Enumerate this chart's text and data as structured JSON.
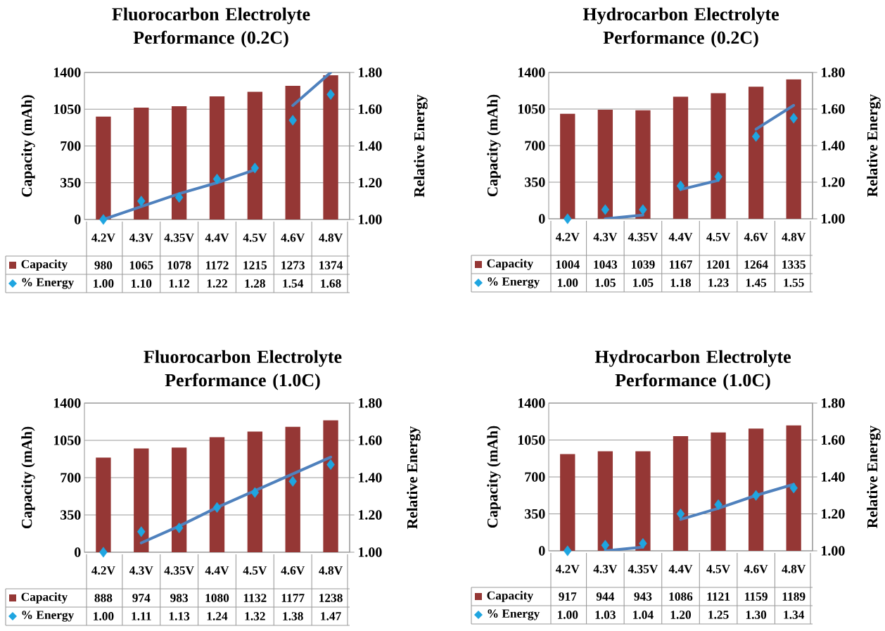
{
  "chart_data": [
    {
      "type": "bar",
      "title": "Fluorocarbon Electrolyte Performance (0.2C)",
      "ylabel": "Capacity (mAh)",
      "y2label": "Relative Energy",
      "categories": [
        "4.2V",
        "4.3V",
        "4.35V",
        "4.4V",
        "4.5V",
        "4.6V",
        "4.8V"
      ],
      "series": [
        {
          "name": "Capacity",
          "type": "bar",
          "color": "#953735",
          "values": [
            980,
            1065,
            1078,
            1172,
            1215,
            1273,
            1374
          ],
          "value_labels": [
            "980",
            "1065",
            "1078",
            "1172",
            "1215",
            "1273",
            "1374"
          ]
        },
        {
          "name": "% Energy",
          "type": "scatter",
          "axis": "y2",
          "marker": "diamond",
          "color": "#1fa5e0",
          "values": [
            1.0,
            1.1,
            1.12,
            1.22,
            1.28,
            1.54,
            1.68
          ],
          "value_labels": [
            "1.00",
            "1.10",
            "1.12",
            "1.22",
            "1.28",
            "1.54",
            "1.68"
          ]
        },
        {
          "type": "line",
          "axis": "y2",
          "marker": "none",
          "line_style": "solid",
          "color": "#4f81bd",
          "values": [
            1.0,
            1.07,
            1.14,
            1.2,
            1.27,
            null,
            null
          ]
        },
        {
          "type": "line",
          "axis": "y2",
          "marker": "none",
          "line_style": "solid",
          "color": "#4f81bd",
          "values": [
            null,
            null,
            null,
            null,
            null,
            1.62,
            1.8
          ]
        }
      ],
      "ylim": [
        0,
        1400
      ],
      "yticks": [
        0,
        350,
        700,
        1050,
        1400
      ],
      "y2lim": [
        1.0,
        1.8
      ],
      "y2ticks": [
        {
          "value": 1.0,
          "label": "1.00"
        },
        {
          "value": 1.2,
          "label": "1.20"
        },
        {
          "value": 1.4,
          "label": "1.40"
        },
        {
          "value": 1.6,
          "label": "1.60"
        },
        {
          "value": 1.8,
          "label": "1.80"
        }
      ],
      "grid": "y",
      "legend": "bottom"
    },
    {
      "type": "bar",
      "title": "Hydrocarbon Electrolyte Performance (0.2C)",
      "ylabel": "Capacity (mAh)",
      "y2label": "Relative Energy",
      "categories": [
        "4.2V",
        "4.3V",
        "4.35V",
        "4.4V",
        "4.5V",
        "4.6V",
        "4.8V"
      ],
      "series": [
        {
          "name": "Capacity",
          "type": "bar",
          "color": "#953735",
          "values": [
            1004,
            1043,
            1039,
            1167,
            1201,
            1264,
            1335
          ],
          "value_labels": [
            "1004",
            "1043",
            "1039",
            "1167",
            "1201",
            "1264",
            "1335"
          ]
        },
        {
          "name": "% Energy",
          "type": "scatter",
          "axis": "y2",
          "marker": "diamond",
          "color": "#1fa5e0",
          "values": [
            1.0,
            1.05,
            1.05,
            1.18,
            1.23,
            1.45,
            1.55
          ],
          "value_labels": [
            "1.00",
            "1.05",
            "1.05",
            "1.18",
            "1.23",
            "1.45",
            "1.55"
          ]
        },
        {
          "type": "line",
          "axis": "y2",
          "marker": "none",
          "line_style": "solid",
          "color": "#4f81bd",
          "values": [
            null,
            1.0,
            1.02,
            null,
            null,
            null,
            null
          ]
        },
        {
          "type": "line",
          "axis": "y2",
          "marker": "none",
          "line_style": "solid",
          "color": "#4f81bd",
          "values": [
            null,
            null,
            null,
            1.16,
            1.21,
            null,
            null
          ]
        },
        {
          "type": "line",
          "axis": "y2",
          "marker": "none",
          "line_style": "solid",
          "color": "#4f81bd",
          "values": [
            null,
            null,
            null,
            null,
            null,
            1.49,
            1.62
          ]
        }
      ],
      "ylim": [
        0,
        1400
      ],
      "yticks": [
        0,
        350,
        700,
        1050,
        1400
      ],
      "y2lim": [
        1.0,
        1.8
      ],
      "y2ticks": [
        {
          "value": 1.0,
          "label": "1.00"
        },
        {
          "value": 1.2,
          "label": "1.20"
        },
        {
          "value": 1.4,
          "label": "1.40"
        },
        {
          "value": 1.6,
          "label": "1.60"
        },
        {
          "value": 1.8,
          "label": "1.80"
        }
      ],
      "grid": "y",
      "legend": "bottom"
    },
    {
      "type": "bar",
      "title": "Fluorocarbon Electrolyte Performance (1.0C)",
      "ylabel": "Capacity (mAh)",
      "y2label": "Relative Energy",
      "categories": [
        "4.2V",
        "4.3V",
        "4.35V",
        "4.4V",
        "4.5V",
        "4.6V",
        "4.8V"
      ],
      "series": [
        {
          "name": "Capacity",
          "type": "bar",
          "color": "#953735",
          "values": [
            888,
            974,
            983,
            1080,
            1132,
            1177,
            1238
          ],
          "value_labels": [
            "888",
            "974",
            "983",
            "1080",
            "1132",
            "1177",
            "1238"
          ]
        },
        {
          "name": "% Energy",
          "type": "scatter",
          "axis": "y2",
          "marker": "diamond",
          "color": "#1fa5e0",
          "values": [
            1.0,
            1.11,
            1.13,
            1.24,
            1.32,
            1.38,
            1.47
          ],
          "value_labels": [
            "1.00",
            "1.11",
            "1.13",
            "1.24",
            "1.32",
            "1.38",
            "1.47"
          ]
        },
        {
          "type": "line",
          "axis": "y2",
          "marker": "none",
          "line_style": "solid",
          "color": "#4f81bd",
          "values": [
            null,
            1.05,
            1.14,
            1.24,
            1.33,
            1.42,
            1.51
          ]
        }
      ],
      "ylim": [
        0,
        1400
      ],
      "yticks": [
        0,
        350,
        700,
        1050,
        1400
      ],
      "y2lim": [
        1.0,
        1.8
      ],
      "y2ticks": [
        {
          "value": 1.0,
          "label": "1.00"
        },
        {
          "value": 1.2,
          "label": "1.20"
        },
        {
          "value": 1.4,
          "label": "1.40"
        },
        {
          "value": 1.6,
          "label": "1.60"
        },
        {
          "value": 1.8,
          "label": "1.80"
        }
      ],
      "grid": "y",
      "legend": "bottom"
    },
    {
      "type": "bar",
      "title": "Hydrocarbon Electrolyte Performance (1.0C)",
      "ylabel": "Capacity (mAh)",
      "y2label": "Relative Energy",
      "categories": [
        "4.2V",
        "4.3V",
        "4.35V",
        "4.4V",
        "4.5V",
        "4.6V",
        "4.8V"
      ],
      "series": [
        {
          "name": "Capacity",
          "type": "bar",
          "color": "#953735",
          "values": [
            917,
            944,
            943,
            1086,
            1121,
            1159,
            1189
          ],
          "value_labels": [
            "917",
            "944",
            "943",
            "1086",
            "1121",
            "1159",
            "1189"
          ]
        },
        {
          "name": "% Energy",
          "type": "scatter",
          "axis": "y2",
          "marker": "diamond",
          "color": "#1fa5e0",
          "values": [
            1.0,
            1.03,
            1.04,
            1.2,
            1.25,
            1.3,
            1.34
          ],
          "value_labels": [
            "1.00",
            "1.03",
            "1.04",
            "1.20",
            "1.25",
            "1.30",
            "1.34"
          ]
        },
        {
          "type": "line",
          "axis": "y2",
          "marker": "none",
          "line_style": "solid",
          "color": "#4f81bd",
          "values": [
            null,
            1.0,
            1.02,
            null,
            null,
            null,
            null
          ]
        },
        {
          "type": "line",
          "axis": "y2",
          "marker": "none",
          "line_style": "solid",
          "color": "#4f81bd",
          "values": [
            null,
            null,
            null,
            1.17,
            1.23,
            1.3,
            1.36
          ]
        }
      ],
      "ylim": [
        0,
        1400
      ],
      "yticks": [
        0,
        350,
        700,
        1050,
        1400
      ],
      "y2lim": [
        1.0,
        1.8
      ],
      "y2ticks": [
        {
          "value": 1.0,
          "label": "1.00"
        },
        {
          "value": 1.2,
          "label": "1.20"
        },
        {
          "value": 1.4,
          "label": "1.40"
        },
        {
          "value": 1.6,
          "label": "1.60"
        },
        {
          "value": 1.8,
          "label": "1.80"
        }
      ],
      "grid": "y",
      "legend": "bottom"
    }
  ]
}
